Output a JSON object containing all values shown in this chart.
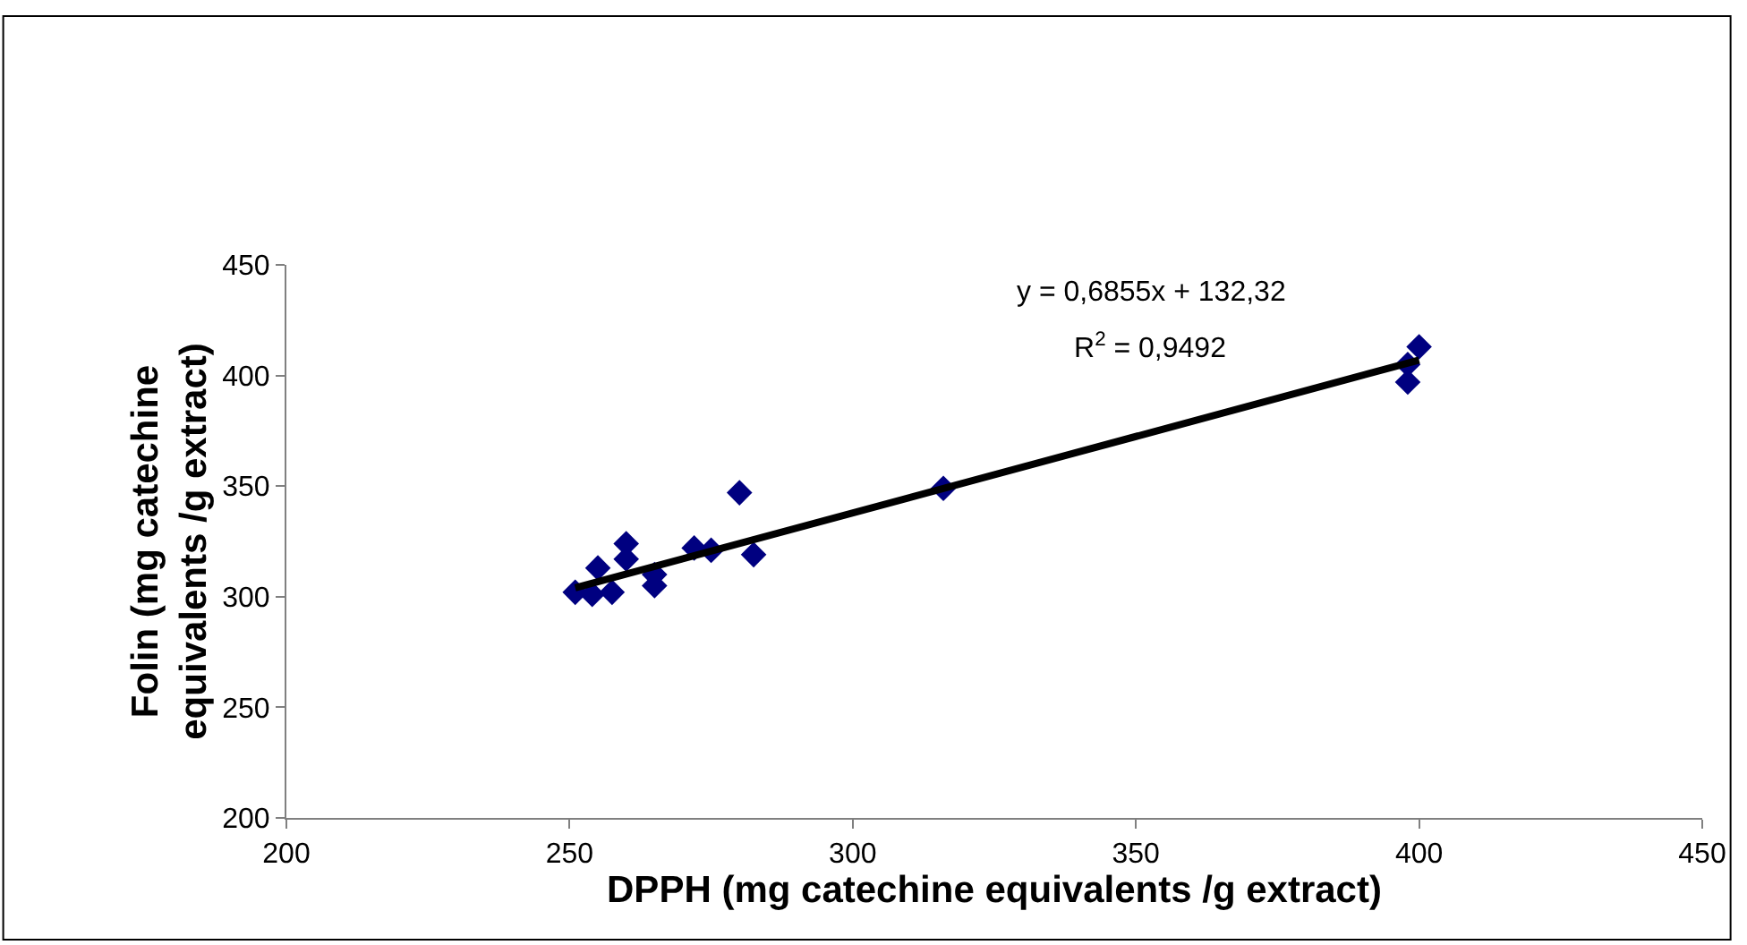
{
  "chart_data": {
    "type": "scatter",
    "xlabel": "DPPH (mg catechine equivalents /g extract)",
    "ylabel": "Folin (mg catechine equivalents /g extract)",
    "xlim": [
      200,
      450
    ],
    "xticks": [
      200,
      250,
      300,
      350,
      400,
      450
    ],
    "ylim": [
      200,
      450
    ],
    "yticks": [
      200,
      250,
      300,
      350,
      400,
      450
    ],
    "grid": false,
    "marker": "diamond",
    "annotations": [
      "y = 0,6855x + 132,32",
      "R$^{2}$ = 0,9492"
    ],
    "series": [
      {
        "color": "#000080",
        "x": [
          280,
          260,
          272,
          275,
          282.5,
          255,
          260,
          265,
          265,
          251,
          254,
          257.5,
          316,
          400,
          398,
          398
        ],
        "values": [
          347,
          324,
          322,
          321,
          319,
          313,
          317,
          310,
          305,
          302,
          301,
          302,
          349,
          413,
          405,
          397
        ]
      },
      {
        "color": "#000000",
        "type": "line",
        "marker": "none",
        "x": [
          251,
          400
        ],
        "values": [
          304,
          407
        ]
      }
    ]
  }
}
